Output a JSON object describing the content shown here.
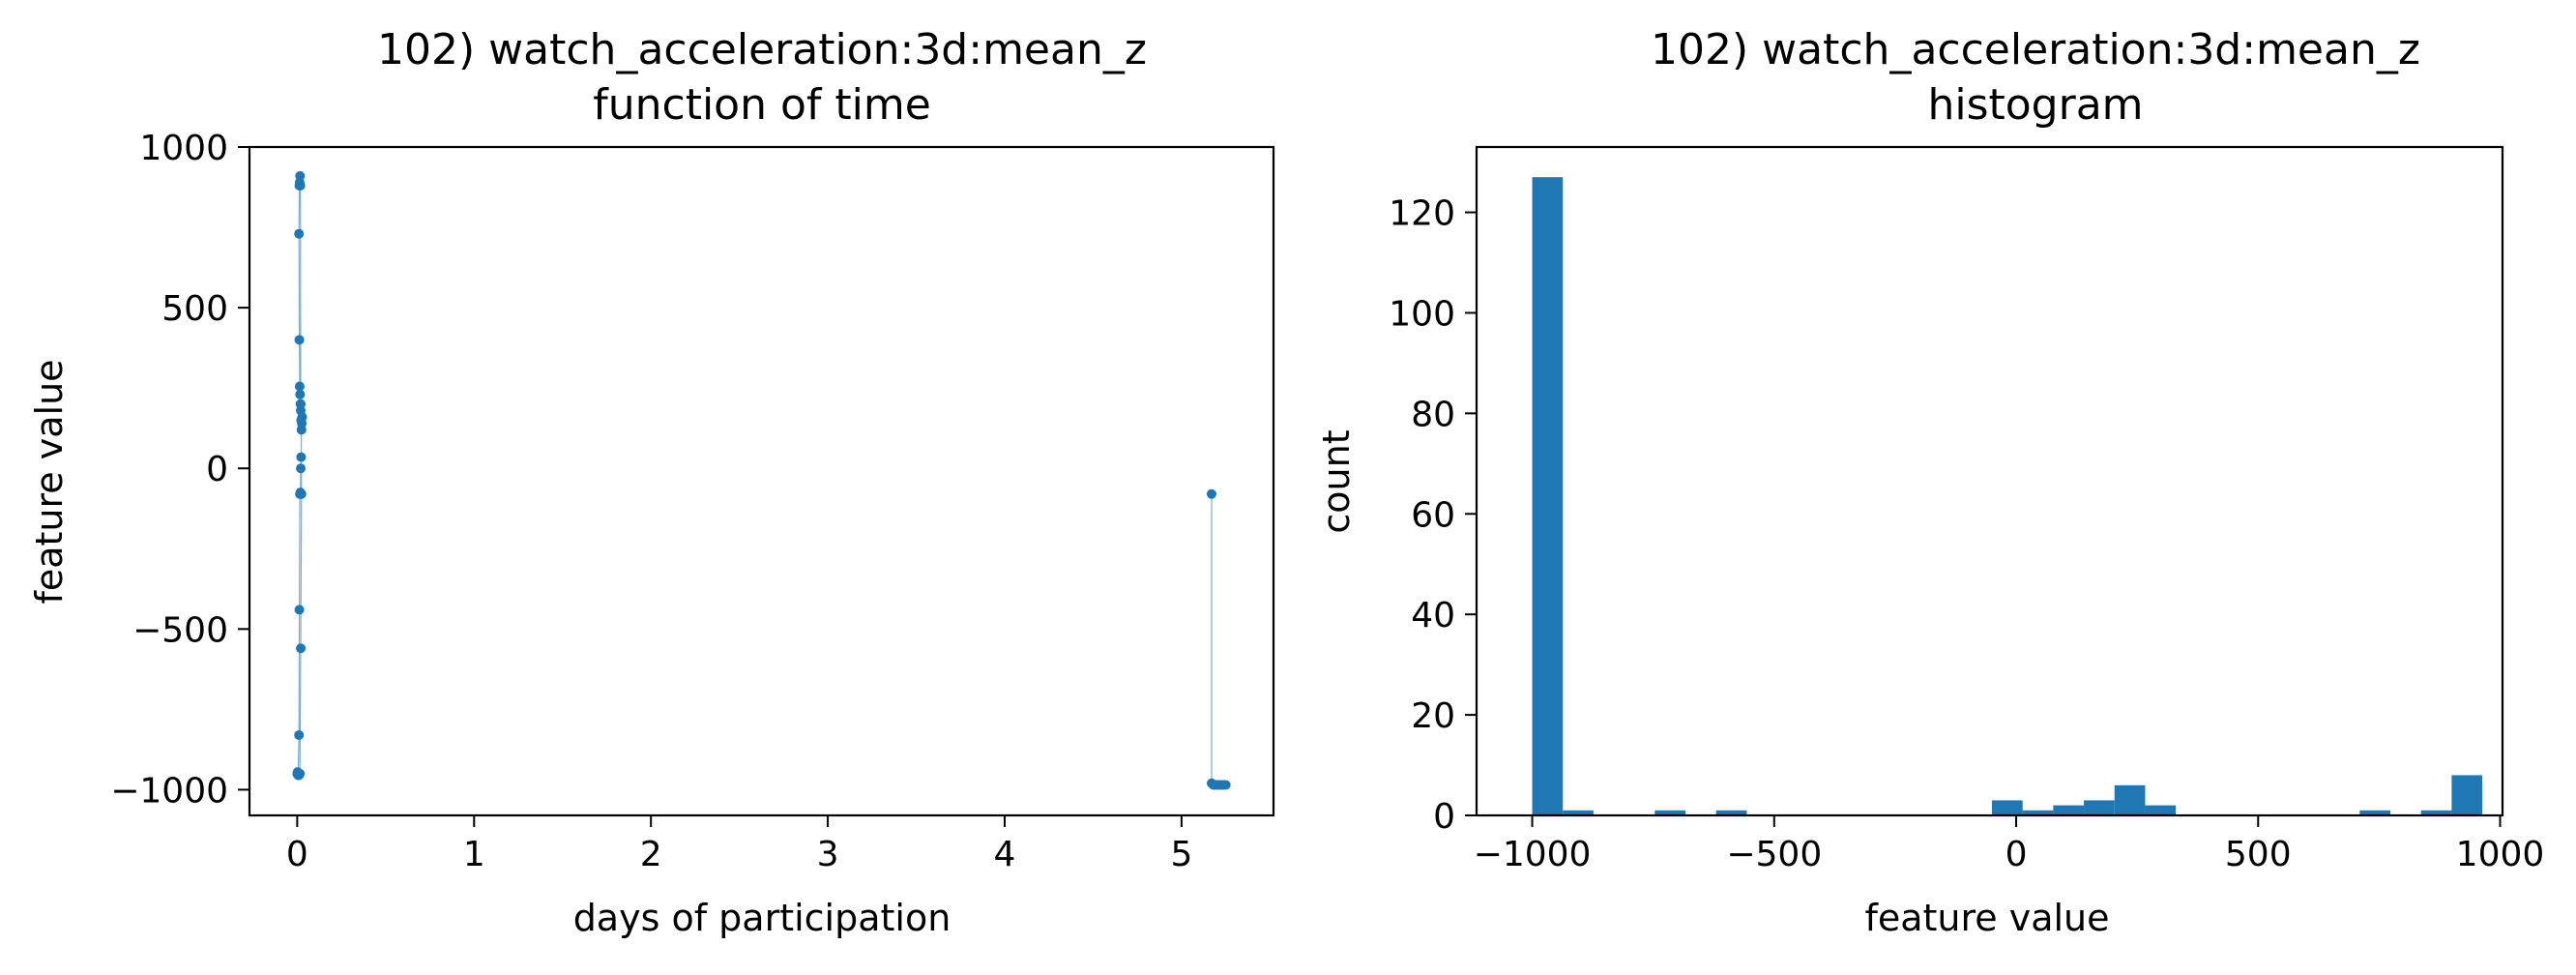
{
  "chart_data": [
    {
      "type": "scatter",
      "title_line1": "102) watch_acceleration:3d:mean_z",
      "title_line2": "function of time",
      "xlabel": "days of participation",
      "ylabel": "feature value",
      "xlim": [
        -0.27,
        5.52
      ],
      "ylim": [
        -1080,
        1000
      ],
      "xticks": [
        0,
        1,
        2,
        3,
        4,
        5
      ],
      "yticks": [
        -1000,
        -500,
        0,
        500,
        1000
      ],
      "xtick_labels": [
        "0",
        "1",
        "2",
        "3",
        "4",
        "5"
      ],
      "ytick_labels": [
        "−1000",
        "−500",
        "0",
        "500",
        "1000"
      ],
      "color": "#1f77b4",
      "series": [
        {
          "x": [
            0.0,
            0.005,
            0.01,
            0.012,
            0.015,
            0.018,
            0.02,
            0.022,
            0.024,
            0.026,
            0.028,
            0.02,
            0.018,
            0.016,
            0.014,
            0.012,
            0.01,
            0.012,
            0.014,
            0.016,
            0.018,
            0.02,
            0.022,
            0.024,
            0.02,
            0.015,
            0.01,
            0.005,
            0.003,
            0.002
          ],
          "y": [
            -950,
            -955,
            -830,
            -440,
            -80,
            -75,
            0,
            35,
            120,
            140,
            160,
            180,
            200,
            230,
            255,
            400,
            730,
            880,
            890,
            910,
            880,
            200,
            150,
            -80,
            -560,
            -950,
            -955,
            -950,
            -950,
            -945
          ]
        },
        {
          "x": [
            5.17,
            5.17,
            5.18,
            5.19,
            5.2,
            5.21,
            5.22,
            5.23,
            5.24,
            5.25
          ],
          "y": [
            -80,
            -980,
            -985,
            -985,
            -985,
            -985,
            -985,
            -985,
            -985,
            -985
          ]
        }
      ]
    },
    {
      "type": "bar",
      "title_line1": "102) watch_acceleration:3d:mean_z",
      "title_line2": "histogram",
      "xlabel": "feature value",
      "ylabel": "count",
      "xlim": [
        -1115,
        1005
      ],
      "ylim": [
        0,
        133
      ],
      "xticks": [
        -1000,
        -500,
        0,
        500,
        1000
      ],
      "yticks": [
        0,
        20,
        40,
        60,
        80,
        100,
        120
      ],
      "xtick_labels": [
        "−1000",
        "−500",
        "0",
        "500",
        "1000"
      ],
      "ytick_labels": [
        "0",
        "20",
        "40",
        "60",
        "80",
        "100",
        "120"
      ],
      "color": "#1f77b4",
      "bin_start": -1000,
      "bin_width": 63.33,
      "counts": [
        127,
        1,
        0,
        0,
        1,
        0,
        1,
        0,
        0,
        0,
        0,
        0,
        0,
        0,
        0,
        3,
        1,
        2,
        3,
        6,
        2,
        0,
        0,
        0,
        0,
        0,
        0,
        1,
        0,
        1,
        8
      ]
    }
  ]
}
